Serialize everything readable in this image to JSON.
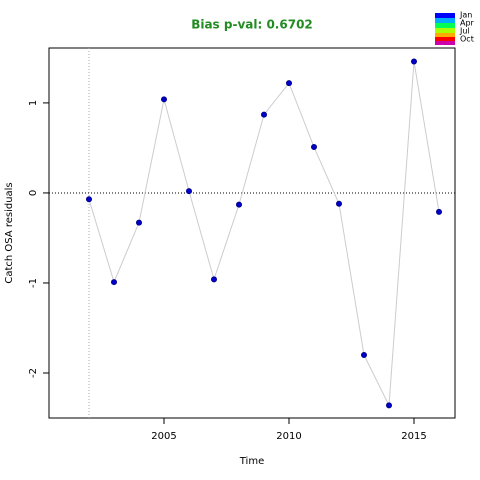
{
  "chart_data": {
    "type": "line",
    "title": "Bias p-val: 0.6702",
    "x_label": "Time",
    "y_label": "Catch OSA residuals",
    "x": [
      2002,
      2003,
      2004,
      2005,
      2006,
      2007,
      2008,
      2009,
      2010,
      2011,
      2012,
      2013,
      2014,
      2015,
      2016
    ],
    "values": [
      -0.07,
      -0.99,
      -0.33,
      1.04,
      0.02,
      -0.96,
      -0.13,
      0.87,
      1.22,
      0.51,
      -0.12,
      -1.8,
      -2.36,
      1.46,
      -0.21
    ],
    "line_color": "#cccccc",
    "point_color": "#0000cd",
    "xlim": [
      2000.4,
      2016.64
    ],
    "ylim": [
      -2.5,
      1.61
    ],
    "xticks": [
      2005,
      2010,
      2015
    ],
    "yticks": [
      -2,
      -1,
      0,
      1
    ],
    "vline": 2002,
    "hline": 0,
    "legend_labels": [
      "Jan",
      "Apr",
      "Jul",
      "Oct"
    ]
  }
}
